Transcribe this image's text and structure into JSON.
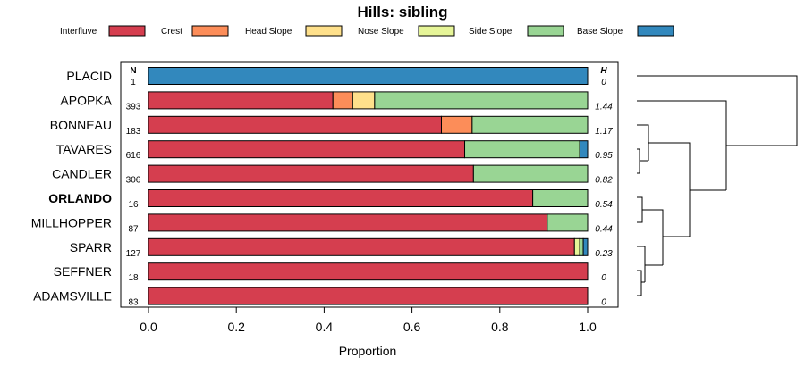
{
  "chart_data": {
    "type": "bar",
    "stacked": true,
    "orientation": "horizontal",
    "title": "Hills: sibling",
    "xlabel": "Proportion",
    "ylabel": "",
    "xlim": [
      0,
      1
    ],
    "x_ticks": [
      0.0,
      0.2,
      0.4,
      0.6,
      0.8,
      1.0
    ],
    "x_tick_labels": [
      "0.0",
      "0.2",
      "0.4",
      "0.6",
      "0.8",
      "1.0"
    ],
    "n_header": "N",
    "h_header": "H",
    "highlight_category": "ORLANDO",
    "legend": [
      {
        "name": "Interfluve",
        "color": "#d53e4f"
      },
      {
        "name": "Crest",
        "color": "#fc8d59"
      },
      {
        "name": "Head Slope",
        "color": "#fee08b"
      },
      {
        "name": "Nose Slope",
        "color": "#e6f598"
      },
      {
        "name": "Side Slope",
        "color": "#99d594"
      },
      {
        "name": "Base Slope",
        "color": "#3288bd"
      }
    ],
    "categories": [
      "PLACID",
      "APOPKA",
      "BONNEAU",
      "TAVARES",
      "CANDLER",
      "ORLANDO",
      "MILLHOPPER",
      "SPARR",
      "SEFFNER",
      "ADAMSVILLE"
    ],
    "n_values": [
      "1",
      "393",
      "183",
      "616",
      "306",
      "16",
      "87",
      "127",
      "18",
      "83"
    ],
    "h_values": [
      "0",
      "1.44",
      "1.17",
      "0.95",
      "0.82",
      "0.54",
      "0.44",
      "0.23",
      "0",
      "0"
    ],
    "series": [
      {
        "name": "Interfluve",
        "values": [
          0,
          0.42,
          0.667,
          0.72,
          0.74,
          0.875,
          0.908,
          0.97,
          1.0,
          1.0
        ]
      },
      {
        "name": "Crest",
        "values": [
          0,
          0.045,
          0.07,
          0,
          0,
          0,
          0,
          0,
          0,
          0
        ]
      },
      {
        "name": "Head Slope",
        "values": [
          0,
          0.05,
          0,
          0,
          0,
          0,
          0,
          0,
          0,
          0
        ]
      },
      {
        "name": "Nose Slope",
        "values": [
          0,
          0,
          0,
          0,
          0,
          0,
          0,
          0.012,
          0,
          0
        ]
      },
      {
        "name": "Side Slope",
        "values": [
          0,
          0.485,
          0.263,
          0.262,
          0.26,
          0.125,
          0.092,
          0.008,
          0,
          0
        ]
      },
      {
        "name": "Base Slope",
        "values": [
          1.0,
          0,
          0,
          0.018,
          0,
          0,
          0,
          0.01,
          0,
          0
        ]
      }
    ]
  }
}
